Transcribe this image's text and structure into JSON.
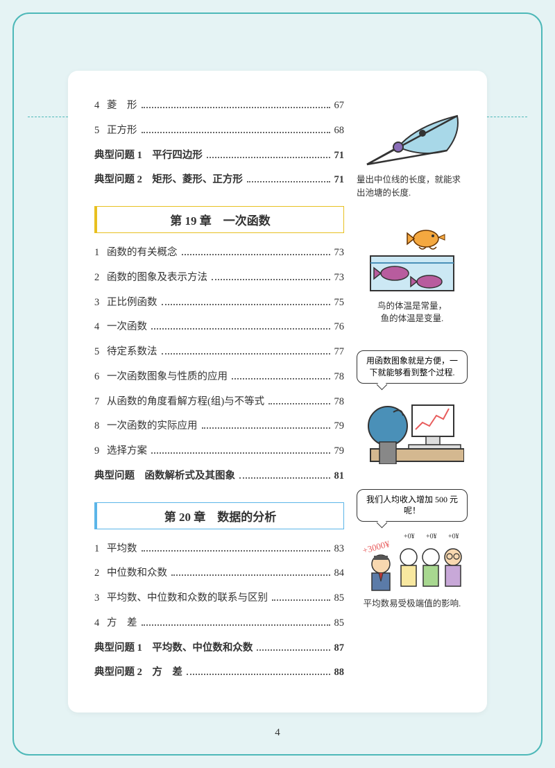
{
  "page_number": "4",
  "intro_items": [
    {
      "num": "4",
      "label": "菱　形",
      "page": "67",
      "bold": false
    },
    {
      "num": "5",
      "label": "正方形",
      "page": "68",
      "bold": false
    },
    {
      "num": "",
      "label": "典型问题 1　平行四边形",
      "page": "71",
      "bold": true
    },
    {
      "num": "",
      "label": "典型问题 2　矩形、菱形、正方形",
      "page": "71",
      "bold": true
    }
  ],
  "chapter19": {
    "title": "第 19 章　一次函数",
    "items": [
      {
        "num": "1",
        "label": "函数的有关概念",
        "page": "73",
        "bold": false
      },
      {
        "num": "2",
        "label": "函数的图象及表示方法",
        "page": "73",
        "bold": false
      },
      {
        "num": "3",
        "label": "正比例函数",
        "page": "75",
        "bold": false
      },
      {
        "num": "4",
        "label": "一次函数",
        "page": "76",
        "bold": false
      },
      {
        "num": "5",
        "label": "待定系数法",
        "page": "77",
        "bold": false
      },
      {
        "num": "6",
        "label": "一次函数图象与性质的应用",
        "page": "78",
        "bold": false
      },
      {
        "num": "7",
        "label": "从函数的角度看解方程(组)与不等式",
        "page": "78",
        "bold": false
      },
      {
        "num": "8",
        "label": "一次函数的实际应用",
        "page": "79",
        "bold": false
      },
      {
        "num": "9",
        "label": "选择方案",
        "page": "79",
        "bold": false
      },
      {
        "num": "",
        "label": "典型问题　函数解析式及其图象",
        "page": "81",
        "bold": true
      }
    ]
  },
  "chapter20": {
    "title": "第 20 章　数据的分析",
    "items": [
      {
        "num": "1",
        "label": "平均数",
        "page": "83",
        "bold": false
      },
      {
        "num": "2",
        "label": "中位数和众数",
        "page": "84",
        "bold": false
      },
      {
        "num": "3",
        "label": "平均数、中位数和众数的联系与区别",
        "page": "85",
        "bold": false
      },
      {
        "num": "4",
        "label": "方　差",
        "page": "85",
        "bold": false
      },
      {
        "num": "",
        "label": "典型问题 1　平均数、中位数和众数",
        "page": "87",
        "bold": true
      },
      {
        "num": "",
        "label": "典型问题 2　方　差",
        "page": "88",
        "bold": true
      }
    ]
  },
  "sidebar": {
    "fig1_caption": "量出中位线的长度，就能求出池塘的长度.",
    "fig2_caption": "鸟的体温是常量，\n鱼的体温是变量.",
    "fig3_bubble": "用函数图象就是方便，一下就能够看到整个过程.",
    "fig4_bubble": "我们人均收入增加 500 元呢！",
    "fig4_caption": "平均数易受极端值的影响."
  },
  "colors": {
    "bg": "#e5f3f4",
    "frame": "#4db8b8",
    "card": "#ffffff",
    "text": "#333333",
    "yellow": "#e8c020",
    "blue": "#5bb5e8",
    "pond": "#a8d8e8",
    "bird": "#f4a840",
    "fish": "#b85c9e"
  }
}
